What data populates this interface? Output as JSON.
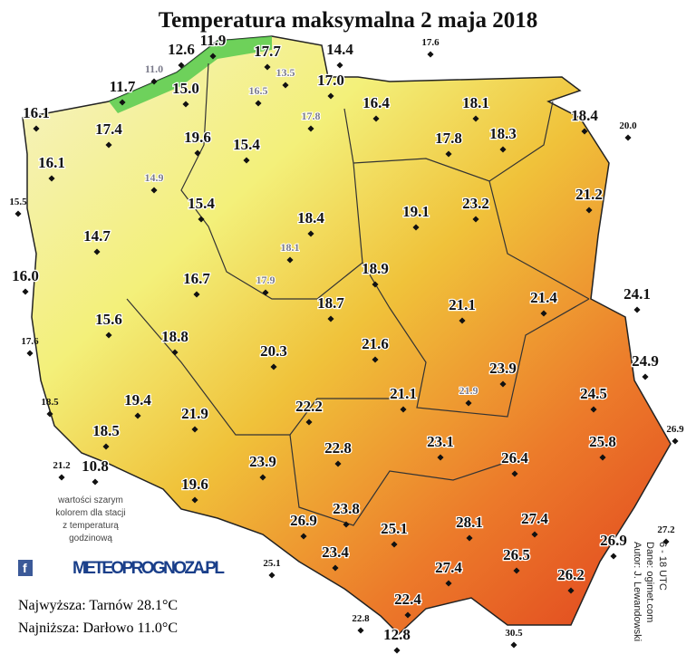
{
  "title": "Temperatura maksymalna 2 maja 2018",
  "stations": [
    "12.6",
    "11.9",
    "17.7",
    "14.4",
    "11.7",
    "15.0",
    "17.0",
    "16.1",
    "16.4",
    "18.1",
    "18.4",
    "17.4",
    "19.6",
    "15.4",
    "17.8",
    "18.3",
    "16.1",
    "15.4",
    "18.4",
    "19.1",
    "23.2",
    "21.2",
    "14.7",
    "16.0",
    "16.7",
    "18.9",
    "18.7",
    "21.1",
    "21.4",
    "24.1",
    "15.6",
    "18.8",
    "20.3",
    "21.6",
    "24.9",
    "23.9",
    "21.1",
    "24.5",
    "19.4",
    "22.2",
    "21.9",
    "18.5",
    "23.1",
    "25.8",
    "22.8",
    "10.8",
    "23.9",
    "26.4",
    "19.6",
    "23.8",
    "26.9",
    "25.1",
    "28.1",
    "27.4",
    "26.9",
    "23.4",
    "26.5",
    "27.4",
    "26.2",
    "22.4",
    "12.8"
  ],
  "border_stations": [
    "17.6",
    "20.0",
    "15.5",
    "17.6",
    "18.5",
    "21.2",
    "26.9",
    "27.2",
    "25.1",
    "22.8",
    "30.5"
  ],
  "hourly_stations": [
    "11.0",
    "13.5",
    "16.5",
    "17.8",
    "14.9",
    "18.1",
    "17.9",
    "21.9"
  ],
  "note": [
    "wartości szarym",
    "kolorem dla stacji",
    "z temperaturą",
    "godzinową"
  ],
  "logo": "METEOPROGNOZA.PL",
  "highest": "Najwyższa: Tarnów 28.1°C",
  "lowest": "Najniższa: Darłowo 11.0°C",
  "credits": [
    "Autor: J. Lewandowski",
    "Dane: ogimet.com",
    "6 - 18 UTC"
  ]
}
